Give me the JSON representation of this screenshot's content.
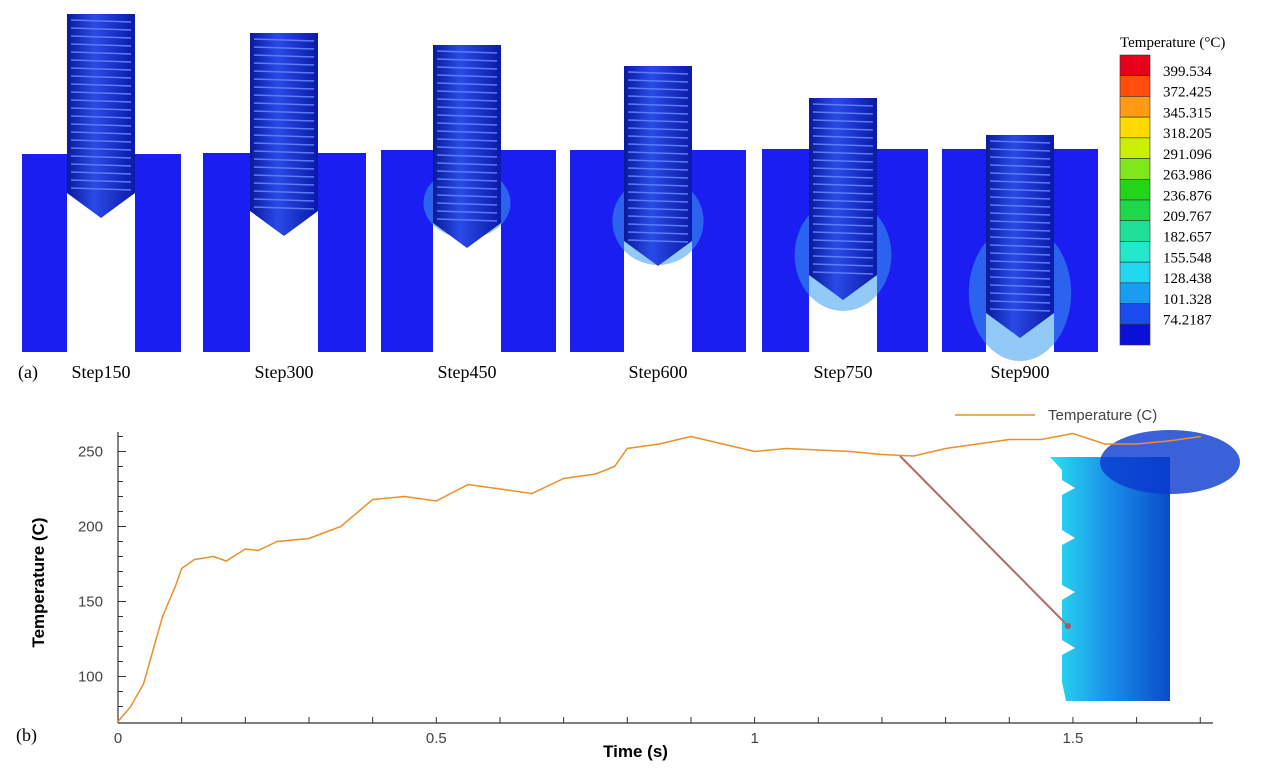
{
  "panel_a": {
    "label": "(a)",
    "steps": [
      "Step150",
      "Step300",
      "Step450",
      "Step600",
      "Step750",
      "Step900"
    ],
    "colorbar": {
      "title": "Temperature (°C)",
      "labels": [
        "399.534",
        "372.425",
        "345.315",
        "318.205",
        "291.096",
        "263.986",
        "236.876",
        "209.767",
        "182.657",
        "155.548",
        "128.438",
        "101.328",
        "74.2187"
      ],
      "colors": [
        "#e8001a",
        "#ff4d0d",
        "#ff9a14",
        "#ffd900",
        "#c8f000",
        "#80e81a",
        "#22d41a",
        "#1ed84a",
        "#20e098",
        "#22e8cc",
        "#22d8f0",
        "#1a9cf0",
        "#1a4cf0",
        "#0a10d8"
      ]
    }
  },
  "chart_data": {
    "type": "line",
    "panel_label": "(b)",
    "title": "",
    "xlabel": "Time (s)",
    "ylabel": "Temperature (C)",
    "xlim": [
      0,
      1.72
    ],
    "ylim": [
      69,
      263
    ],
    "xticks": [
      "0",
      "0.5",
      "1",
      "1.5"
    ],
    "xtick_values": [
      0,
      0.5,
      1,
      1.5
    ],
    "yticks": [
      "100",
      "150",
      "200",
      "250"
    ],
    "ytick_values": [
      100,
      150,
      200,
      250
    ],
    "grid": false,
    "legend_position": "top-right",
    "series": [
      {
        "name": "Temperature (C)",
        "color": "#e8902a",
        "x": [
          0,
          0.02,
          0.04,
          0.05,
          0.06,
          0.07,
          0.09,
          0.1,
          0.12,
          0.15,
          0.17,
          0.2,
          0.22,
          0.25,
          0.3,
          0.35,
          0.4,
          0.45,
          0.5,
          0.55,
          0.6,
          0.65,
          0.7,
          0.75,
          0.78,
          0.8,
          0.85,
          0.9,
          0.95,
          1.0,
          1.05,
          1.1,
          1.15,
          1.2,
          1.25,
          1.3,
          1.35,
          1.4,
          1.45,
          1.5,
          1.55,
          1.6,
          1.65,
          1.7
        ],
        "y": [
          70,
          80,
          95,
          110,
          125,
          140,
          160,
          172,
          178,
          180,
          177,
          185,
          184,
          190,
          192,
          200,
          218,
          220,
          217,
          228,
          225,
          222,
          232,
          235,
          240,
          252,
          255,
          260,
          255,
          250,
          252,
          251,
          250,
          248,
          247,
          252,
          255,
          258,
          258,
          262,
          255,
          255,
          257,
          260
        ]
      }
    ]
  }
}
